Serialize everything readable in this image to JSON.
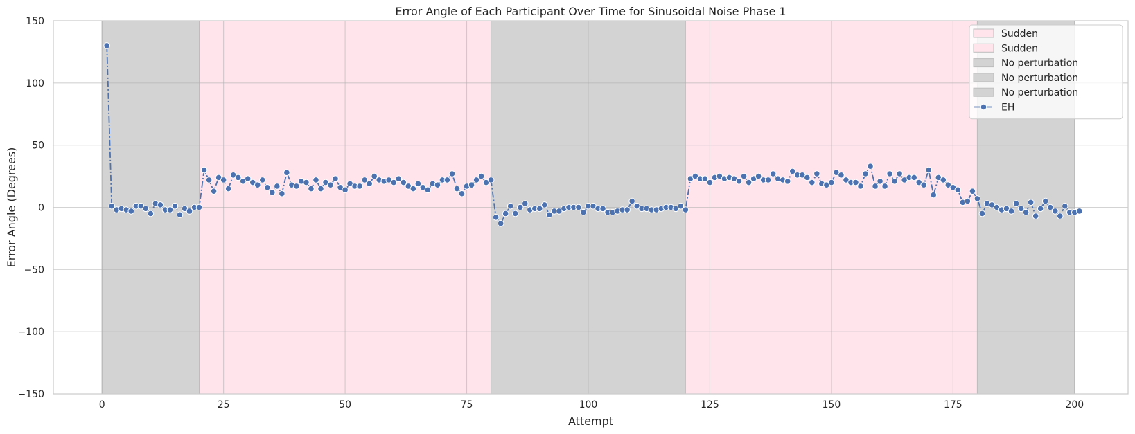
{
  "chart_data": {
    "type": "line",
    "title": "Error Angle of Each Participant Over Time for Sinusoidal Noise Phase 1",
    "xlabel": "Attempt",
    "ylabel": "Error Angle (Degrees)",
    "xlim": [
      -10,
      211
    ],
    "ylim": [
      -150,
      150
    ],
    "xticks": [
      0,
      25,
      50,
      75,
      100,
      125,
      150,
      175,
      200
    ],
    "yticks": [
      150,
      100,
      50,
      0,
      -50,
      -100,
      -150
    ],
    "xtick_labels": [
      "0",
      "25",
      "50",
      "75",
      "100",
      "125",
      "150",
      "175",
      "200"
    ],
    "ytick_labels": [
      "150",
      "100",
      "50",
      "0",
      "−50",
      "−100",
      "−150"
    ],
    "grid": true,
    "legend_position": "top-right",
    "regions": [
      {
        "label": "No perturbation",
        "x0": 0,
        "x1": 20,
        "color": "#d3d3d3"
      },
      {
        "label": "Sudden",
        "x0": 20,
        "x1": 80,
        "color": "#ffe4ec"
      },
      {
        "label": "No perturbation",
        "x0": 80,
        "x1": 120,
        "color": "#d3d3d3"
      },
      {
        "label": "Sudden",
        "x0": 120,
        "x1": 180,
        "color": "#ffe4ec"
      },
      {
        "label": "No perturbation",
        "x0": 180,
        "x1": 200,
        "color": "#d3d3d3"
      }
    ],
    "legend": [
      {
        "label": "Sudden",
        "kind": "patch",
        "color": "#ffe4ec"
      },
      {
        "label": "Sudden",
        "kind": "patch",
        "color": "#ffe4ec"
      },
      {
        "label": "No perturbation",
        "kind": "patch",
        "color": "#d3d3d3"
      },
      {
        "label": "No perturbation",
        "kind": "patch",
        "color": "#d3d3d3"
      },
      {
        "label": "No perturbation",
        "kind": "patch",
        "color": "#d3d3d3"
      },
      {
        "label": "EH",
        "kind": "line",
        "color": "#4c72b0"
      }
    ],
    "series": [
      {
        "name": "EH",
        "color": "#4c72b0",
        "x_start": 1,
        "values": [
          130,
          1,
          -2,
          -1,
          -2,
          -3,
          1,
          1,
          -1,
          -5,
          3,
          2,
          -2,
          -2,
          1,
          -6,
          -1,
          -3,
          0,
          0,
          30,
          22,
          13,
          24,
          22,
          15,
          26,
          24,
          21,
          23,
          20,
          18,
          22,
          16,
          12,
          17,
          11,
          28,
          18,
          17,
          21,
          20,
          15,
          22,
          15,
          20,
          18,
          23,
          16,
          14,
          19,
          17,
          17,
          22,
          19,
          25,
          22,
          21,
          22,
          20,
          23,
          20,
          17,
          15,
          19,
          16,
          14,
          19,
          18,
          22,
          22,
          27,
          15,
          11,
          17,
          18,
          22,
          25,
          20,
          22,
          -8,
          -13,
          -5,
          1,
          -5,
          0,
          3,
          -2,
          -1,
          -1,
          2,
          -6,
          -3,
          -3,
          -1,
          0,
          0,
          0,
          -4,
          1,
          1,
          -1,
          -1,
          -4,
          -4,
          -3,
          -2,
          -2,
          5,
          1,
          -1,
          -1,
          -2,
          -2,
          -1,
          0,
          0,
          -1,
          1,
          -2,
          23,
          25,
          23,
          23,
          20,
          24,
          25,
          23,
          24,
          23,
          21,
          25,
          20,
          23,
          25,
          22,
          22,
          27,
          23,
          22,
          21,
          29,
          26,
          26,
          24,
          20,
          27,
          19,
          18,
          20,
          28,
          26,
          22,
          20,
          20,
          17,
          27,
          33,
          17,
          21,
          17,
          27,
          21,
          27,
          22,
          24,
          24,
          20,
          18,
          30,
          10,
          24,
          22,
          18,
          16,
          14,
          4,
          5,
          13,
          7,
          -5,
          3,
          2,
          0,
          -2,
          -1,
          -3,
          3,
          -1,
          -4,
          4,
          -7,
          -1,
          5,
          0,
          -3,
          -7,
          1,
          -4,
          -4,
          -3
        ]
      }
    ]
  }
}
